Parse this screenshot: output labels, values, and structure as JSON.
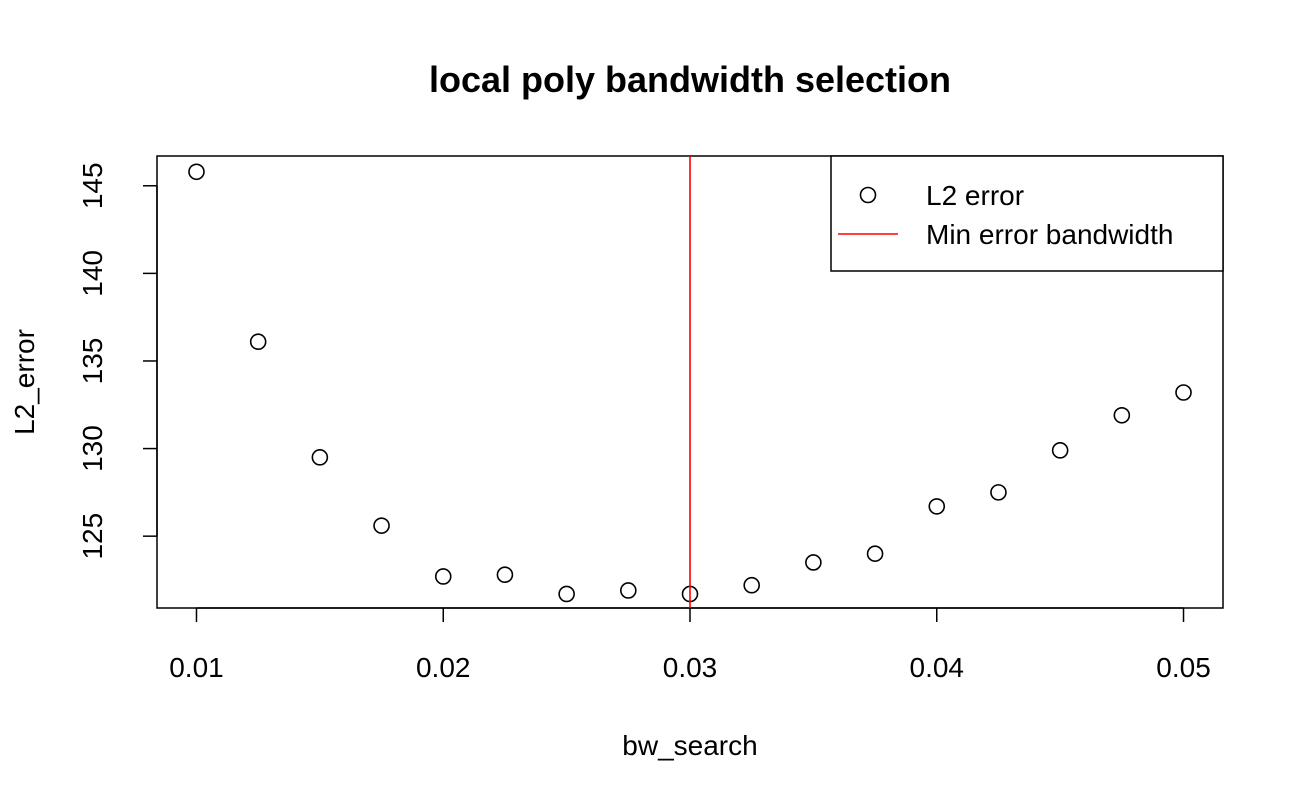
{
  "chart_data": {
    "type": "scatter",
    "title": "local poly bandwidth selection",
    "xlabel": "bw_search",
    "ylabel": "L2_error",
    "xlim": [
      0.0084,
      0.0516
    ],
    "ylim": [
      120.9,
      146.7
    ],
    "x_ticks": [
      0.01,
      0.02,
      0.03,
      0.04,
      0.05
    ],
    "x_tick_labels": [
      "0.01",
      "0.02",
      "0.03",
      "0.04",
      "0.05"
    ],
    "y_ticks": [
      125,
      130,
      135,
      140,
      145
    ],
    "y_tick_labels": [
      "125",
      "130",
      "135",
      "140",
      "145"
    ],
    "grid": false,
    "legend_position": "top-right",
    "series": [
      {
        "name": "L2 error",
        "kind": "points",
        "marker": "open-circle",
        "color": "#000000",
        "x": [
          0.01,
          0.0125,
          0.015,
          0.0175,
          0.02,
          0.0225,
          0.025,
          0.0275,
          0.03,
          0.0325,
          0.035,
          0.0375,
          0.04,
          0.0425,
          0.045,
          0.0475,
          0.05
        ],
        "y": [
          145.8,
          136.1,
          129.5,
          125.6,
          122.7,
          122.8,
          121.7,
          121.9,
          121.7,
          122.2,
          123.5,
          124.0,
          126.7,
          127.5,
          129.9,
          131.9,
          133.2
        ]
      },
      {
        "name": "Min error bandwidth",
        "kind": "vline",
        "color": "#ff0000",
        "x": 0.03
      }
    ]
  }
}
